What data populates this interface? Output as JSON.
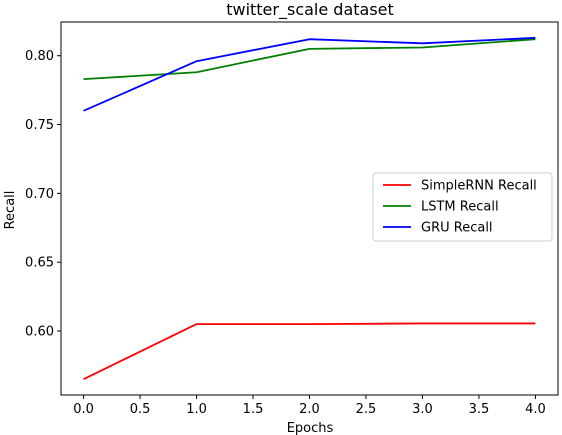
{
  "chart_data": {
    "type": "line",
    "title": "twitter_scale dataset",
    "xlabel": "Epochs",
    "ylabel": "Recall",
    "x": [
      0,
      1,
      2,
      3,
      4
    ],
    "xlim": [
      -0.2,
      4.2
    ],
    "ylim": [
      0.5535,
      0.8245
    ],
    "xticks": [
      0.0,
      0.5,
      1.0,
      1.5,
      2.0,
      2.5,
      3.0,
      3.5,
      4.0
    ],
    "xtick_labels": [
      "0.0",
      "0.5",
      "1.0",
      "1.5",
      "2.0",
      "2.5",
      "3.0",
      "3.5",
      "4.0"
    ],
    "yticks": [
      0.6,
      0.65,
      0.7,
      0.75,
      0.8
    ],
    "ytick_labels": [
      "0.60",
      "0.65",
      "0.70",
      "0.75",
      "0.80"
    ],
    "grid": false,
    "legend_position": "center-right",
    "series": [
      {
        "name": "SimpleRNN Recall",
        "color": "#ff0000",
        "values": [
          0.565,
          0.605,
          0.605,
          0.6055,
          0.6055
        ]
      },
      {
        "name": "LSTM Recall",
        "color": "#008000",
        "values": [
          0.783,
          0.788,
          0.805,
          0.806,
          0.812
        ]
      },
      {
        "name": "GRU Recall",
        "color": "#0000ff",
        "values": [
          0.76,
          0.796,
          0.812,
          0.809,
          0.813
        ]
      }
    ]
  }
}
